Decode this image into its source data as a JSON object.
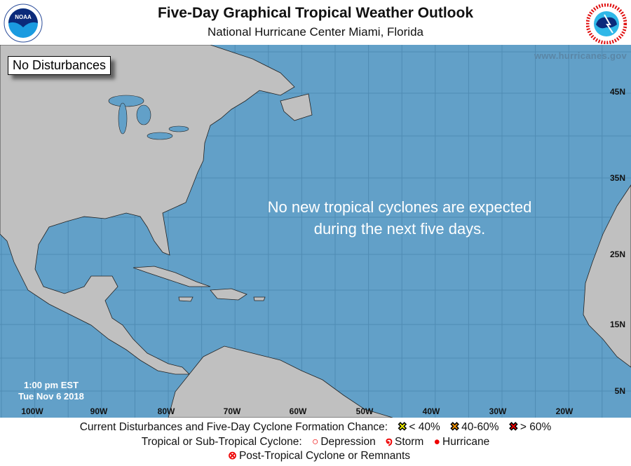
{
  "header": {
    "title": "Five-Day Graphical Tropical Weather Outlook",
    "subtitle": "National Hurricane Center  Miami, Florida",
    "left_logo": "NOAA",
    "right_logo": "NATIONAL WEATHER SERVICE"
  },
  "map": {
    "status_box": "No Disturbances",
    "message_line1": "No new tropical cyclones are expected",
    "message_line2": "during the next five days.",
    "website": "www.hurricanes.gov",
    "time": "1:00 pm EST",
    "date": "Tue Nov 6 2018",
    "longitude_labels": [
      "100W",
      "90W",
      "80W",
      "70W",
      "60W",
      "50W",
      "40W",
      "30W",
      "20W"
    ],
    "latitude_labels": [
      "45N",
      "35N",
      "25N",
      "15N",
      "5N"
    ],
    "colors": {
      "ocean": "#62a0c8",
      "land": "#c0c0c0",
      "grid": "#4f8bb3"
    }
  },
  "legend": {
    "line1_label": "Current Disturbances and Five-Day Cyclone Formation Chance:",
    "chance_low": "< 40%",
    "chance_mid": "40-60%",
    "chance_high": "> 60%",
    "line2_label": "Tropical or Sub-Tropical Cyclone:",
    "depression": "Depression",
    "storm": "Storm",
    "hurricane": "Hurricane",
    "post_tropical": "Post-Tropical Cyclone or Remnants",
    "colors": {
      "low": "#ffff00",
      "mid": "#ff9900",
      "high": "#ff0000",
      "cyclone": "#ee0000"
    }
  }
}
